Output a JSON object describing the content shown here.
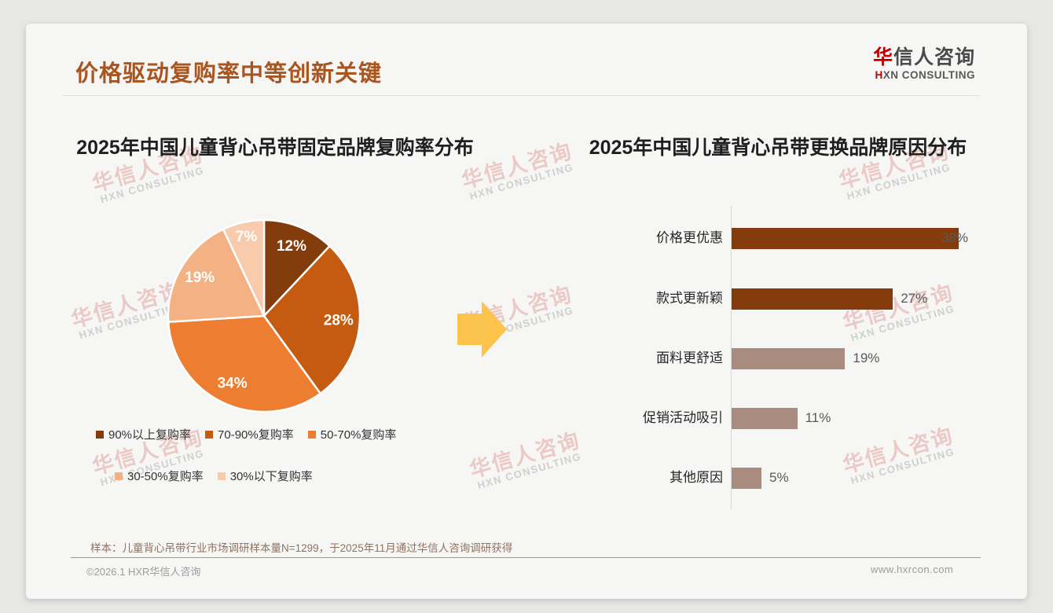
{
  "header": {
    "title": "价格驱动复购率中等创新关键",
    "logo": {
      "zh_accent": "华",
      "zh_rest": "信人咨询",
      "en_accent": "H",
      "en_rest": "XN CONSULTING"
    }
  },
  "watermark": {
    "zh": "华信人咨询",
    "en": "HXN CONSULTING"
  },
  "footer": {
    "note": "样本：儿童背心吊带行业市场调研样本量N=1299，于2025年11月通过华信人咨询调研获得",
    "copyright": "©2026.1 HXR华信人咨询",
    "website": "www.hxrcon.com"
  },
  "colors": {
    "title_accent": "#A8551F",
    "logo_red": "#C00000",
    "arrow": "#FCC44D",
    "bar_dark": "#843C0C",
    "bar_light": "#A98B80",
    "page_bg": "#E7E7E6",
    "card_bg": "#F6F6F5"
  },
  "chart_data": [
    {
      "type": "pie",
      "title": "2025年中国儿童背心吊带固定品牌复购率分布",
      "labels": [
        "90%以上复购率",
        "70-90%复购率",
        "50-70%复购率",
        "30-50%复购率",
        "30%以下复购率"
      ],
      "values": [
        12,
        28,
        34,
        19,
        7
      ],
      "value_labels": [
        "12%",
        "28%",
        "34%",
        "19%",
        "7%"
      ],
      "colors": [
        "#833C0B",
        "#C55A11",
        "#ED7D31",
        "#F4B183",
        "#F8CBAD"
      ],
      "start_angle_deg": 0,
      "direction": "clockwise",
      "legend_position": "bottom-left"
    },
    {
      "type": "bar",
      "orientation": "horizontal",
      "title": "2025年中国儿童背心吊带更换品牌原因分布",
      "categories": [
        "价格更优惠",
        "款式更新颖",
        "面料更舒适",
        "促销活动吸引",
        "其他原因"
      ],
      "values": [
        38,
        27,
        19,
        11,
        5
      ],
      "value_labels": [
        "38%",
        "27%",
        "19%",
        "11%",
        "5%"
      ],
      "bar_colors": [
        "#843C0C",
        "#843C0C",
        "#A98B80",
        "#A98B80",
        "#A98B80"
      ],
      "xlim": [
        0,
        40
      ],
      "grid": false,
      "legend_position": "none"
    }
  ]
}
